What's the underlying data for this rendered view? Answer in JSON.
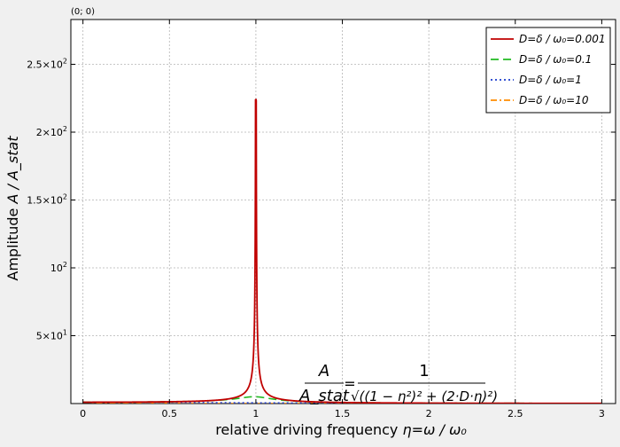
{
  "chart_data": {
    "type": "line",
    "coord_readout": "(0; 0)",
    "xlabel": "relative driving frequency",
    "xlabel_math": "η=ω / ω₀",
    "ylabel": "Amplitude",
    "ylabel_math": "A / A_stat",
    "xlim": [
      -0.07,
      3.08
    ],
    "ylim": [
      0,
      283
    ],
    "x_ticks": [
      {
        "v": 0,
        "label": "0"
      },
      {
        "v": 0.5,
        "label": "0.5"
      },
      {
        "v": 1,
        "label": "1"
      },
      {
        "v": 1.5,
        "label": "1.5"
      },
      {
        "v": 2,
        "label": "2"
      },
      {
        "v": 2.5,
        "label": "2.5"
      },
      {
        "v": 3,
        "label": "3"
      }
    ],
    "y_ticks": [
      {
        "v": 50,
        "mant": "5×10",
        "exp": "1"
      },
      {
        "v": 100,
        "mant": "10",
        "exp": "2"
      },
      {
        "v": 150,
        "mant": "1.5×10",
        "exp": "2"
      },
      {
        "v": 200,
        "mant": "2×10",
        "exp": "2"
      },
      {
        "v": 250,
        "mant": "2.5×10",
        "exp": "2"
      }
    ],
    "grid": true,
    "legend_position": "top-right",
    "series": [
      {
        "name": "D=δ / ω₀=0.001",
        "D": 0.001,
        "color": "#c00000",
        "dash": "",
        "peak": 224
      },
      {
        "name": "D=δ / ω₀=0.1",
        "D": 0.1,
        "color": "#22bb22",
        "dash": "9,5",
        "peak": 5
      },
      {
        "name": "D=δ / ω₀=1",
        "D": 1,
        "color": "#1a3bcc",
        "dash": "2,3",
        "peak": 1
      },
      {
        "name": "D=δ / ω₀=10",
        "D": 10,
        "color": "#ff8c00",
        "dash": "7,3,2,3",
        "peak": 1
      }
    ],
    "formula": {
      "lhs_num": "A",
      "lhs_den": "A_stat",
      "equals": "=",
      "rhs_num": "1",
      "rhs_den": "√((1 − η²)² + (2·D·η)²)"
    }
  }
}
